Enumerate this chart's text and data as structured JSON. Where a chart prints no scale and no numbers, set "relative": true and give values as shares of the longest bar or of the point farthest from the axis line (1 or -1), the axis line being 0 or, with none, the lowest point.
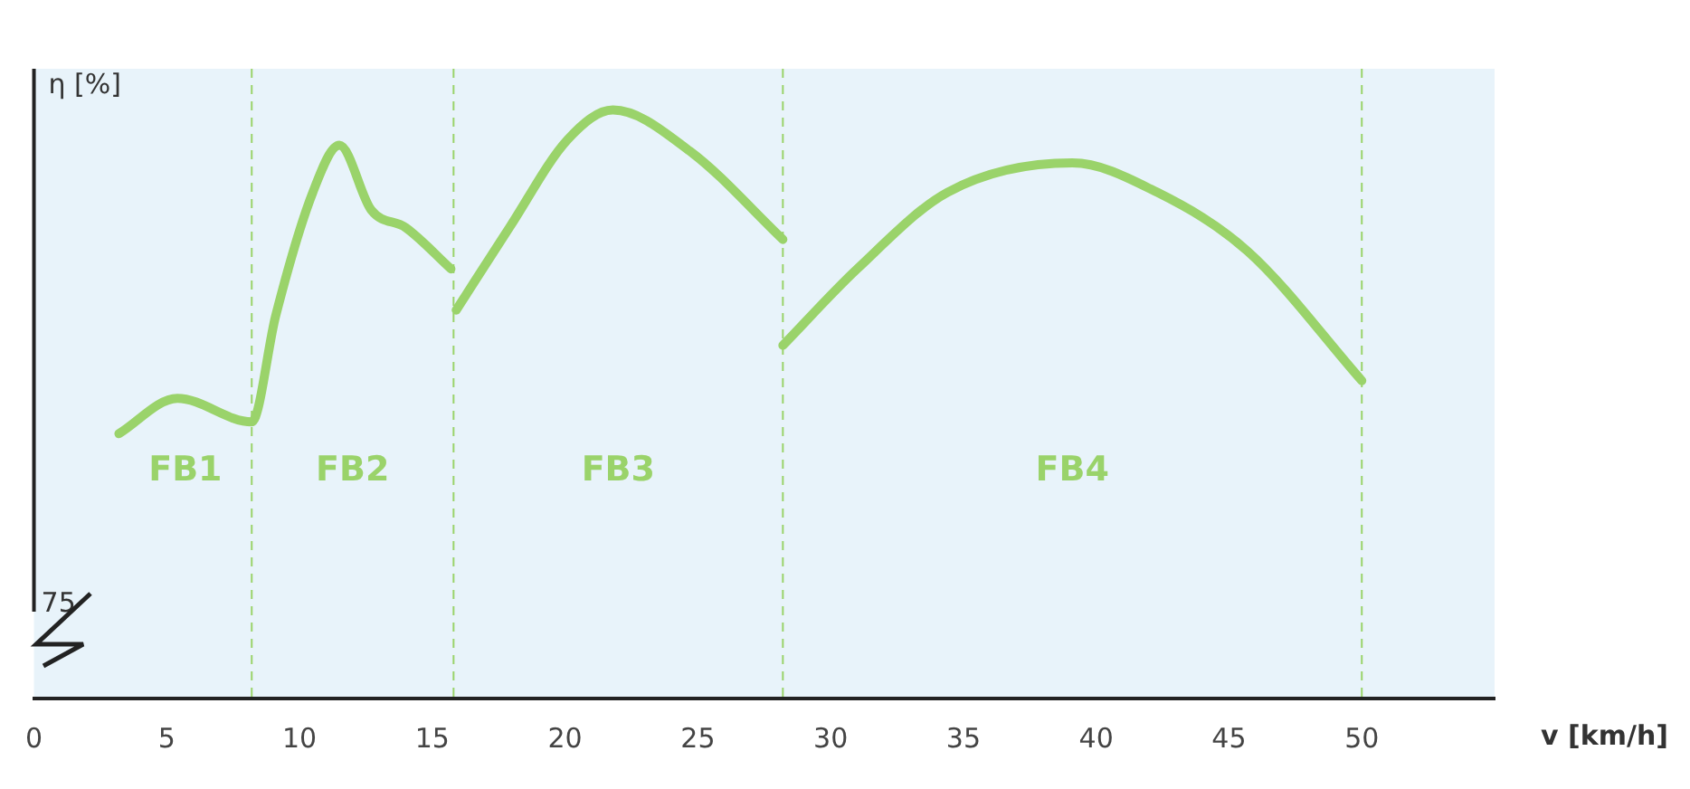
{
  "chart_data": {
    "type": "line",
    "relative": true,
    "xlabel": "v [km/h]",
    "ylabel": "η [%]",
    "xlim": [
      0,
      55
    ],
    "xticks": [
      0,
      5,
      10,
      15,
      20,
      25,
      30,
      35,
      40,
      45,
      50
    ],
    "grid": false,
    "legend": false,
    "marker": "none",
    "line_style": "solid",
    "series": [
      {
        "color": "#9ad36a",
        "x": [
          3.2,
          5.4,
          8.2,
          9.1,
          10.5,
          11.5,
          12.7,
          14.0,
          15.7
        ],
        "values": [
          0.45,
          0.51,
          0.47,
          0.65,
          0.86,
          0.94,
          0.83,
          0.8,
          0.73
        ]
      },
      {
        "color": "#9ad36a",
        "x": [
          15.9,
          17.9,
          20.1,
          21.8,
          24.7,
          28.2
        ],
        "values": [
          0.66,
          0.8,
          0.95,
          1.0,
          0.93,
          0.78
        ]
      },
      {
        "color": "#9ad36a",
        "x": [
          28.2,
          31.0,
          34.4,
          39.1,
          42.3,
          45.7,
          50.0
        ],
        "values": [
          0.6,
          0.73,
          0.86,
          0.91,
          0.86,
          0.76,
          0.54
        ]
      }
    ],
    "ref_lines": [
      {
        "axis": "x",
        "value": 8.2,
        "color": "#9ad36a",
        "line_style": "dashed"
      },
      {
        "axis": "x",
        "value": 15.8,
        "color": "#9ad36a",
        "line_style": "dashed"
      },
      {
        "axis": "x",
        "value": 28.2,
        "color": "#9ad36a",
        "line_style": "dashed"
      },
      {
        "axis": "x",
        "value": 50,
        "color": "#9ad36a",
        "line_style": "dashed"
      }
    ],
    "annotations": [
      "75",
      "FB1",
      "FB2",
      "FB3",
      "FB4"
    ]
  }
}
